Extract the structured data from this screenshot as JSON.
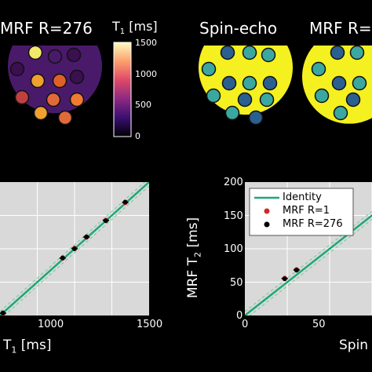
{
  "panels": {
    "map_mrf": {
      "title": "MRF R=276",
      "colorbar_label": "T",
      "colorbar_sub": "1",
      "colorbar_unit": " [ms]",
      "colorbar_ticks": [
        "1500",
        "1000",
        "500",
        "0"
      ]
    },
    "map_spin_echo": {
      "title": "Spin-echo"
    },
    "map_mrf_right": {
      "title": "MRF R="
    }
  },
  "colors": {
    "background": "#000000",
    "plot_bg": "#d9d9d9",
    "identity": "#1fa774",
    "mrf_r1": "#d62728",
    "mrf_r276": "#000000",
    "phantom_low": "#4a1a6a",
    "phantom_high": "#f5f020"
  },
  "chart_data": [
    {
      "type": "scatter",
      "xlabel": "T",
      "xlabel_sub": "1",
      "xlabel_unit": " [ms]",
      "x_ticks": [
        "1000",
        "1500"
      ],
      "xlim": [
        500,
        1500
      ],
      "ylim": [
        500,
        1500
      ],
      "grid": true,
      "series": [
        {
          "name": "Identity",
          "type": "line",
          "x": [
            500,
            1500
          ],
          "y": [
            500,
            1500
          ]
        },
        {
          "name": "MRF R=1",
          "x": [
            520,
            920,
            1000,
            1080,
            1210,
            1340
          ],
          "y": [
            515,
            928,
            1005,
            1085,
            1215,
            1345
          ]
        },
        {
          "name": "MRF R=276",
          "x": [
            520,
            920,
            1000,
            1080,
            1210,
            1340
          ],
          "y": [
            520,
            932,
            1000,
            1090,
            1210,
            1350
          ]
        }
      ]
    },
    {
      "type": "scatter",
      "ylabel": "MRF T",
      "ylabel_sub": "2",
      "ylabel_unit": " [ms]",
      "xlabel": "Spin",
      "x_ticks": [
        "0",
        "50"
      ],
      "y_ticks": [
        "0",
        "50",
        "100",
        "150",
        "200"
      ],
      "xlim": [
        0,
        150
      ],
      "ylim": [
        0,
        200
      ],
      "grid": true,
      "legend": "top-left",
      "series": [
        {
          "name": "Identity",
          "type": "line",
          "x": [
            0,
            200
          ],
          "y": [
            0,
            200
          ]
        },
        {
          "name": "MRF R=1",
          "x": [
            47,
            61
          ],
          "y": [
            56,
            69
          ]
        },
        {
          "name": "MRF R=276",
          "x": [
            47,
            61
          ],
          "y": [
            55,
            68
          ]
        }
      ]
    }
  ]
}
